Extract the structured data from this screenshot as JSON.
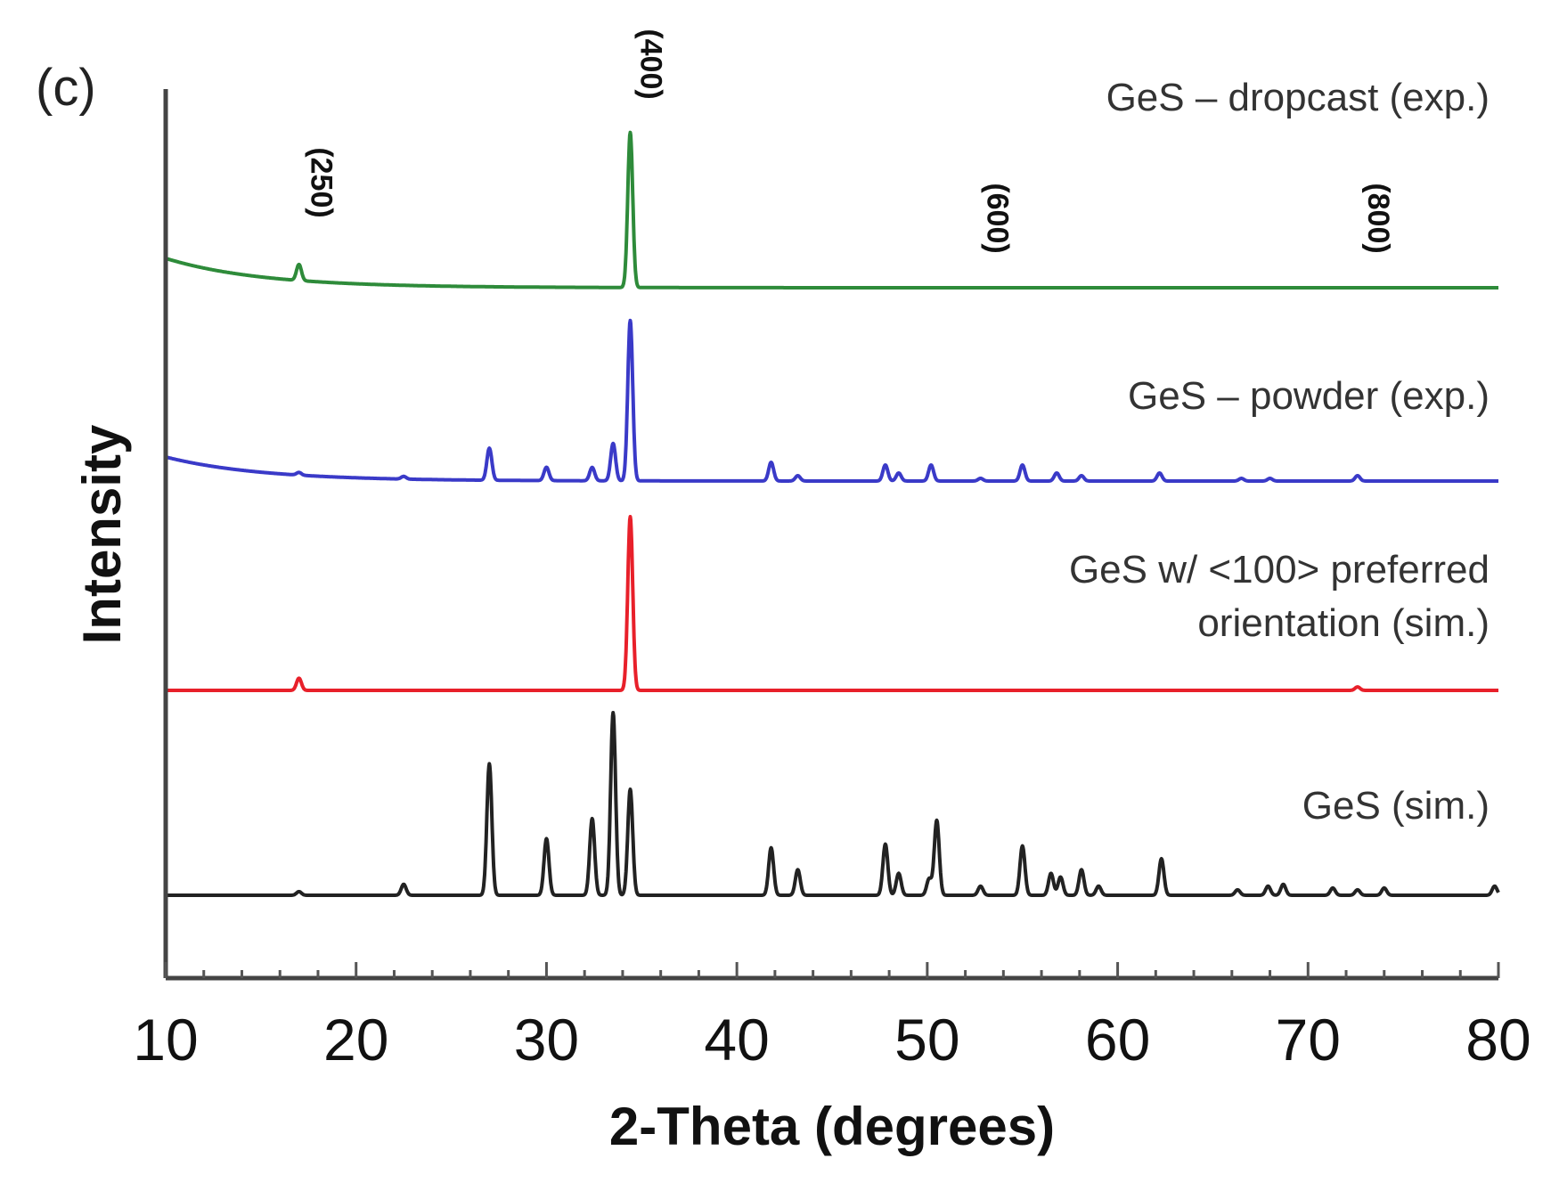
{
  "chart_data": {
    "type": "line",
    "panel_label": "(c)",
    "xlabel": "2-Theta (degrees)",
    "ylabel": "Intensity",
    "xlim": [
      10,
      80
    ],
    "xticks": [
      10,
      20,
      30,
      40,
      50,
      60,
      70,
      80
    ],
    "tick_labels": [
      "10",
      "20",
      "30",
      "40",
      "50",
      "60",
      "70",
      "80"
    ],
    "stacked_offset": true,
    "peak_annotations": [
      {
        "label": "(250)",
        "x": 17.1
      },
      {
        "label": "(400)",
        "x": 34.4
      },
      {
        "label": "(600)",
        "x": 52.6
      },
      {
        "label": "(800)",
        "x": 72.6
      }
    ],
    "series": [
      {
        "name": "GeS – dropcast (exp.)",
        "color": "#2e8b3a",
        "baseline_rel": 0.0,
        "background": {
          "start": 0.11,
          "decay": 5.0
        },
        "peaks": [
          [
            17.0,
            0.06
          ],
          [
            34.4,
            0.58
          ]
        ]
      },
      {
        "name": "GeS – powder (exp.)",
        "color": "#3a3ac8",
        "baseline_rel": 0.0,
        "background": {
          "start": 0.09,
          "decay": 5.0
        },
        "peaks": [
          [
            17.0,
            0.01
          ],
          [
            22.5,
            0.01
          ],
          [
            27.0,
            0.12
          ],
          [
            30.0,
            0.05
          ],
          [
            32.4,
            0.05
          ],
          [
            33.5,
            0.14
          ],
          [
            34.4,
            0.6
          ],
          [
            41.8,
            0.07
          ],
          [
            43.2,
            0.02
          ],
          [
            47.8,
            0.06
          ],
          [
            48.5,
            0.03
          ],
          [
            50.2,
            0.06
          ],
          [
            52.8,
            0.01
          ],
          [
            55.0,
            0.06
          ],
          [
            56.8,
            0.03
          ],
          [
            58.1,
            0.02
          ],
          [
            62.2,
            0.03
          ],
          [
            66.5,
            0.01
          ],
          [
            68.0,
            0.01
          ],
          [
            72.6,
            0.02
          ]
        ]
      },
      {
        "name": "GeS w/ <100> preferred orientation (sim.)",
        "label_lines": [
          "GeS w/ <100> preferred",
          "orientation (sim.)"
        ],
        "color": "#e8202a",
        "baseline_rel": 0.0,
        "background": {
          "start": 0.0,
          "decay": 5.0
        },
        "peaks": [
          [
            17.0,
            0.07
          ],
          [
            34.4,
            1.0
          ],
          [
            72.6,
            0.02
          ]
        ]
      },
      {
        "name": "GeS (sim.)",
        "color": "#222222",
        "baseline_rel": 0.0,
        "background": {
          "start": 0.0,
          "decay": 5.0
        },
        "peaks": [
          [
            17.0,
            0.02
          ],
          [
            22.5,
            0.06
          ],
          [
            27.0,
            0.72
          ],
          [
            30.0,
            0.31
          ],
          [
            32.4,
            0.42
          ],
          [
            33.5,
            1.0
          ],
          [
            34.4,
            0.58
          ],
          [
            41.8,
            0.26
          ],
          [
            43.2,
            0.14
          ],
          [
            47.8,
            0.28
          ],
          [
            48.5,
            0.12
          ],
          [
            50.1,
            0.09
          ],
          [
            50.5,
            0.41
          ],
          [
            52.8,
            0.05
          ],
          [
            55.0,
            0.27
          ],
          [
            56.5,
            0.12
          ],
          [
            57.0,
            0.1
          ],
          [
            58.1,
            0.14
          ],
          [
            59.0,
            0.05
          ],
          [
            62.3,
            0.2
          ],
          [
            66.3,
            0.03
          ],
          [
            67.9,
            0.05
          ],
          [
            68.7,
            0.06
          ],
          [
            71.3,
            0.04
          ],
          [
            72.6,
            0.03
          ],
          [
            74.0,
            0.04
          ],
          [
            79.8,
            0.05
          ]
        ]
      }
    ]
  }
}
